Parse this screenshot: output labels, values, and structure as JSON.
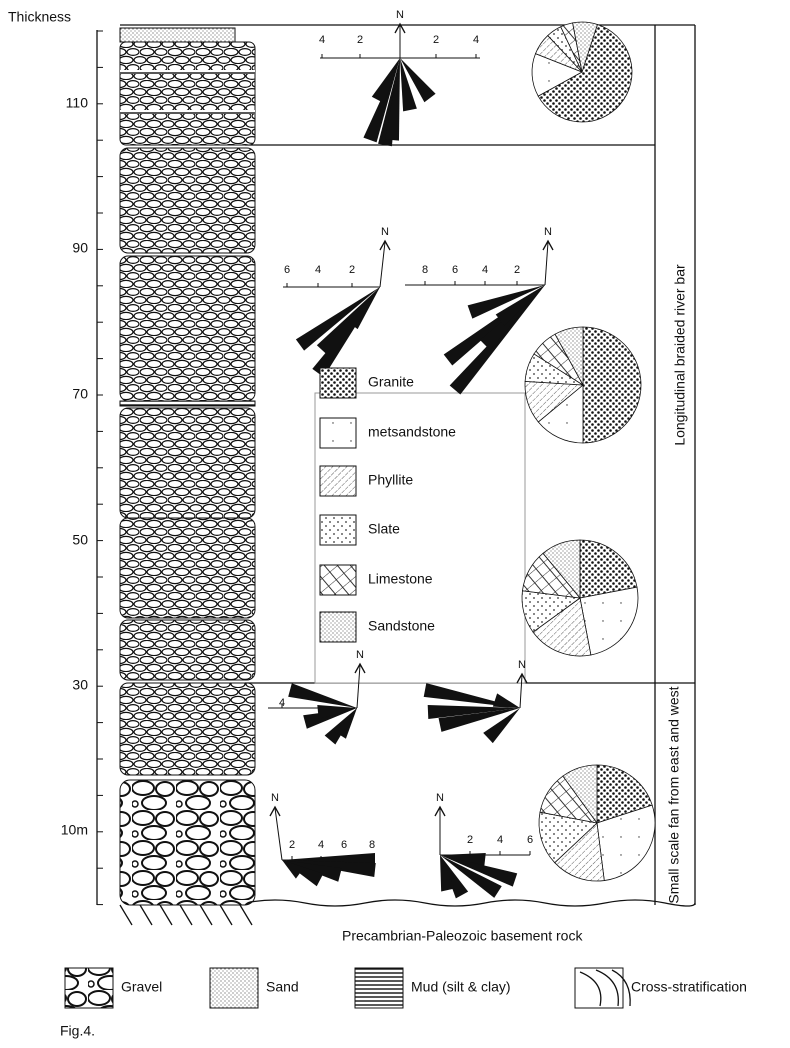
{
  "column": {
    "axis_title": "Thickness",
    "ticks": [
      "110",
      "90",
      "70",
      "50",
      "30",
      "10m"
    ]
  },
  "rose_diagrams": [
    {
      "north": "N",
      "scale": [
        "4",
        "2",
        "2",
        "4"
      ]
    },
    {
      "north": "N",
      "scale": [
        "6",
        "4",
        "2"
      ]
    },
    {
      "north": "N",
      "scale": [
        "8",
        "6",
        "4",
        "2"
      ]
    },
    {
      "north": "N",
      "scale": [
        "4"
      ]
    },
    {
      "north": "N",
      "scale": []
    },
    {
      "north": "N",
      "scale": [
        "2",
        "4",
        "6",
        "8"
      ]
    },
    {
      "north": "N",
      "scale": [
        "2",
        "4",
        "6"
      ]
    }
  ],
  "lithology_legend": [
    "Granite",
    "metsandstone",
    "Phyllite",
    "Slate",
    "Limestone",
    "Sandstone"
  ],
  "environments": [
    "Longitudinal braided river bar",
    "Small scale fan from east and west"
  ],
  "basement": "Precambrian-Paleozoic basement rock",
  "symbol_legend": [
    "Gravel",
    "Sand",
    "Mud (silt & clay)",
    "Cross-stratification"
  ],
  "caption": "Fig.4."
}
